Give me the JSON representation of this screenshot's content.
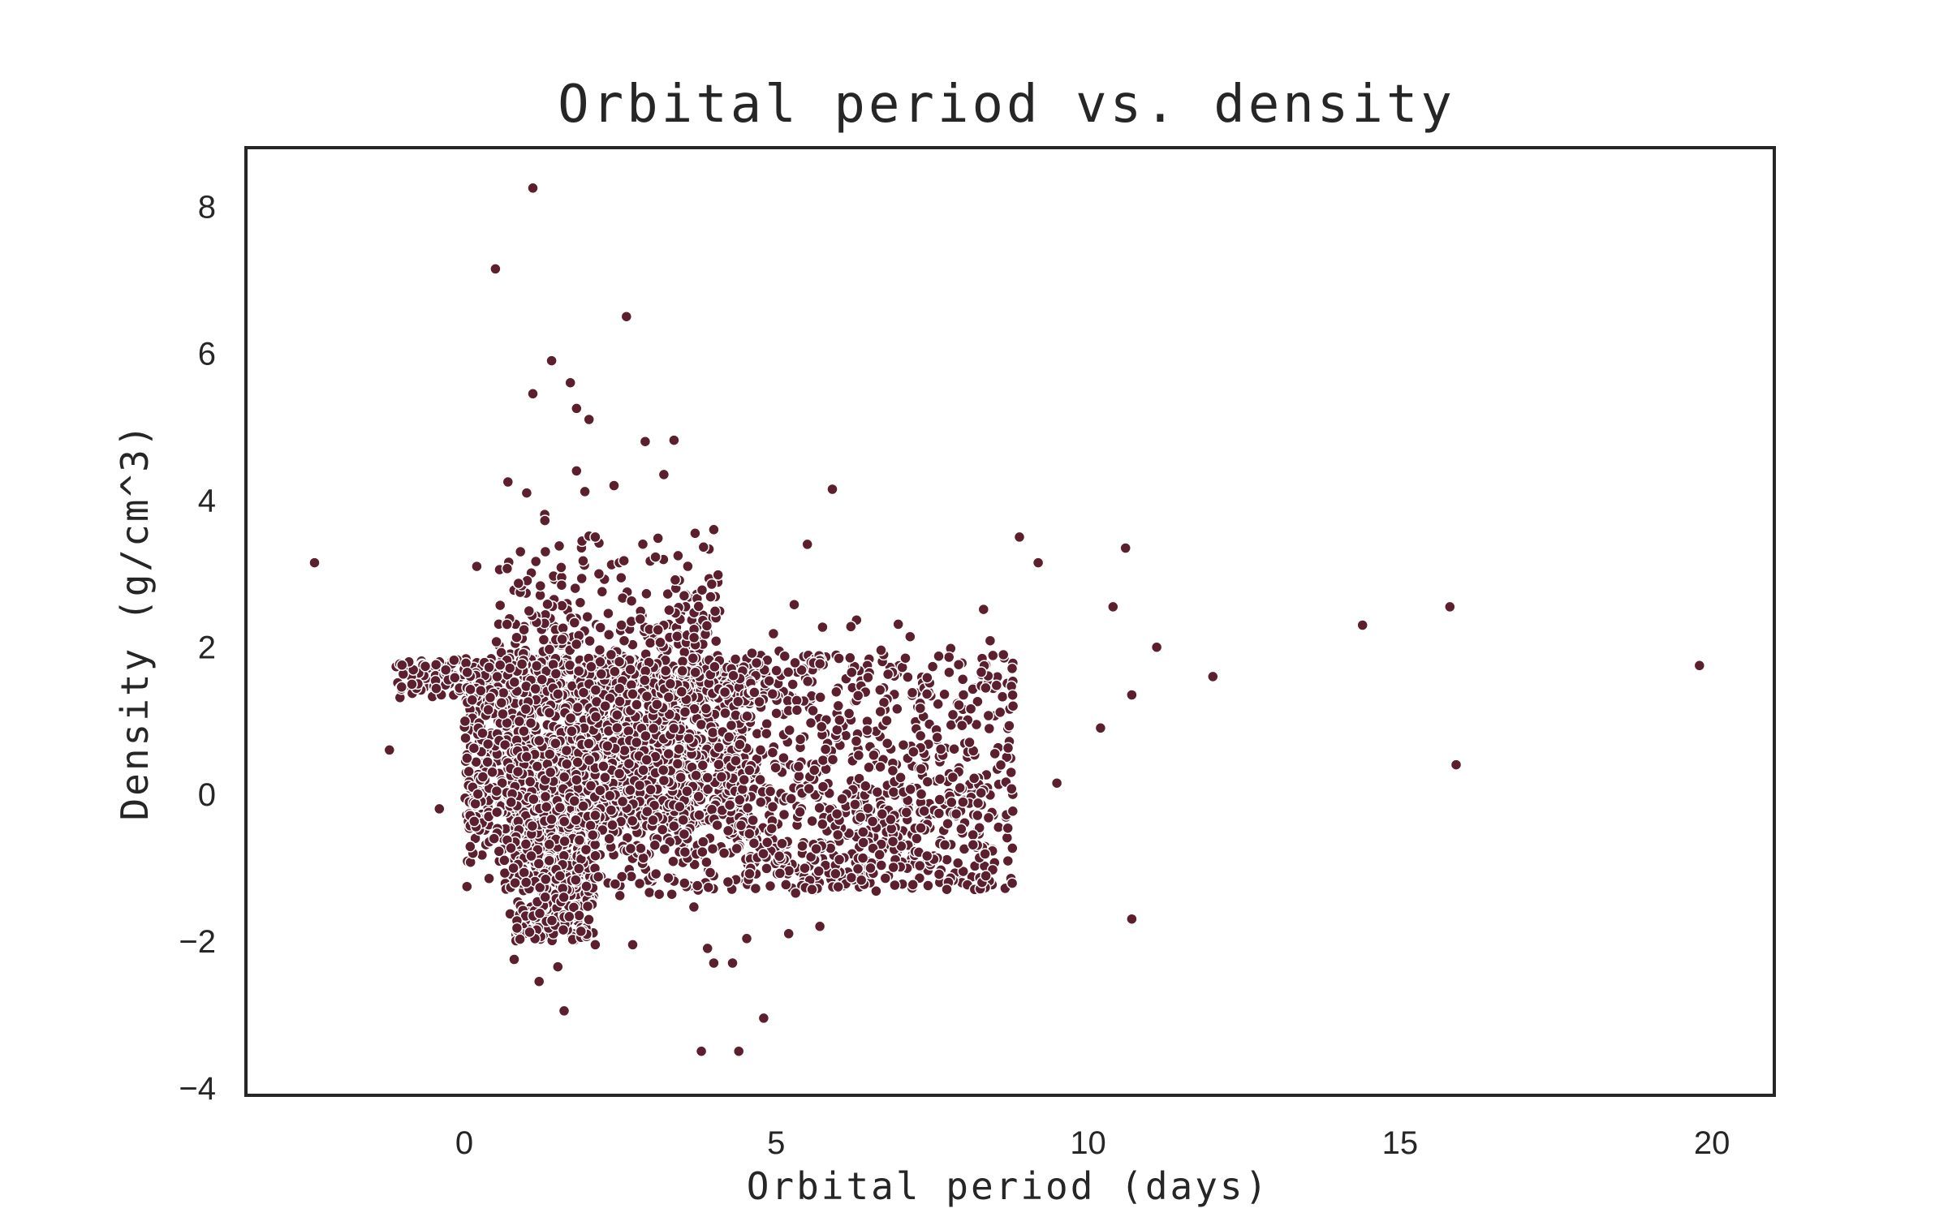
{
  "chart_data": {
    "type": "scatter",
    "title": "Orbital period vs. density",
    "xlabel": "Orbital period (days)",
    "ylabel": "Density (g/cm^3)",
    "xlim": [
      -3.5,
      21
    ],
    "ylim": [
      -4.1,
      8.8
    ],
    "xticks": [
      0,
      5,
      10,
      15,
      20
    ],
    "yticks": [
      -4,
      -2,
      0,
      2,
      4,
      6,
      8
    ],
    "ytick_labels": [
      "−4",
      "−2",
      "0",
      "2",
      "4",
      "6",
      "8"
    ],
    "grid": false,
    "legend": "none",
    "marker_color": "#5c1f2e",
    "marker_edge": "#ffffff",
    "n_points": 4000,
    "bulk_summary": {
      "main_cluster_x_range": [
        -1.2,
        8.8
      ],
      "main_cluster_y_range": [
        -1.4,
        2.2
      ],
      "densest_region": {
        "x": [
          0,
          4.5
        ],
        "y": [
          -0.5,
          1.8
        ]
      },
      "spike_near_x": 1.4
    },
    "outliers": [
      {
        "x": -2.4,
        "y": 3.15
      },
      {
        "x": 0.5,
        "y": 7.15
      },
      {
        "x": 1.1,
        "y": 8.25
      },
      {
        "x": 2.6,
        "y": 6.5
      },
      {
        "x": 1.4,
        "y": 5.9
      },
      {
        "x": 1.7,
        "y": 5.6
      },
      {
        "x": 1.1,
        "y": 5.45
      },
      {
        "x": 1.8,
        "y": 5.25
      },
      {
        "x": 2.0,
        "y": 5.1
      },
      {
        "x": 2.9,
        "y": 4.8
      },
      {
        "x": 3.2,
        "y": 4.35
      },
      {
        "x": 5.9,
        "y": 4.15
      },
      {
        "x": 4.0,
        "y": 3.6
      },
      {
        "x": 3.7,
        "y": 3.55
      },
      {
        "x": 5.5,
        "y": 3.4
      },
      {
        "x": 8.9,
        "y": 3.5
      },
      {
        "x": 10.6,
        "y": 3.35
      },
      {
        "x": 9.2,
        "y": 3.15
      },
      {
        "x": 10.4,
        "y": 2.55
      },
      {
        "x": 11.1,
        "y": 2.0
      },
      {
        "x": 10.7,
        "y": 1.35
      },
      {
        "x": 12.0,
        "y": 1.6
      },
      {
        "x": 14.4,
        "y": 2.3
      },
      {
        "x": 15.8,
        "y": 2.55
      },
      {
        "x": 15.9,
        "y": 0.4
      },
      {
        "x": 19.8,
        "y": 1.75
      },
      {
        "x": 10.7,
        "y": -1.7
      },
      {
        "x": 9.5,
        "y": 0.15
      },
      {
        "x": 10.2,
        "y": 0.9
      },
      {
        "x": 3.8,
        "y": -3.5
      },
      {
        "x": 4.4,
        "y": -3.5
      },
      {
        "x": 4.8,
        "y": -3.05
      },
      {
        "x": 1.6,
        "y": -2.95
      },
      {
        "x": 1.2,
        "y": -2.55
      },
      {
        "x": 1.5,
        "y": -2.35
      },
      {
        "x": 4.0,
        "y": -2.3
      },
      {
        "x": 4.3,
        "y": -2.3
      },
      {
        "x": 3.9,
        "y": -2.1
      },
      {
        "x": 2.7,
        "y": -2.05
      },
      {
        "x": 2.1,
        "y": -2.05
      },
      {
        "x": 0.8,
        "y": -2.25
      },
      {
        "x": 5.2,
        "y": -1.9
      },
      {
        "x": 5.7,
        "y": -1.8
      },
      {
        "x": -1.2,
        "y": 0.6
      },
      {
        "x": -0.4,
        "y": -0.2
      },
      {
        "x": 0.7,
        "y": 4.25
      },
      {
        "x": 1.0,
        "y": 4.1
      },
      {
        "x": 1.8,
        "y": 4.4
      },
      {
        "x": 2.4,
        "y": 4.2
      },
      {
        "x": 2.1,
        "y": 3.5
      },
      {
        "x": 0.9,
        "y": 3.3
      },
      {
        "x": 1.3,
        "y": 3.3
      },
      {
        "x": 0.2,
        "y": 3.1
      }
    ]
  }
}
